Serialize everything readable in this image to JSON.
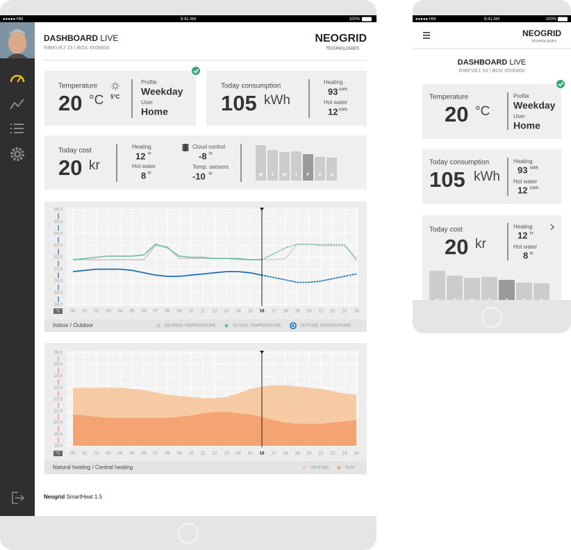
{
  "status_bar": {
    "carrier": "●●●●● HM",
    "time": "9:41 AM",
    "battery": "100%"
  },
  "header": {
    "title": "DASHBOARD",
    "title_suffix": "LIVE",
    "subtitle": "RIBEVEJ 33 | BOX #506800",
    "brand": "NEOGRID",
    "brand_tagline": "TECHNOLOGIES"
  },
  "temperature_card": {
    "label": "Temperature",
    "value": 20,
    "unit": "°C",
    "outdoor": "5°C",
    "profile_label": "Profile",
    "profile": "Weekday",
    "user_label": "User",
    "user": "Home"
  },
  "consumption_card": {
    "label": "Today consumption",
    "value": 105,
    "unit": "kWh",
    "heating_label": "Heating",
    "heating": 93,
    "heating_unit": "kWh",
    "hot_water_label": "Hot water",
    "hot_water": 12,
    "hot_water_unit": "kWh"
  },
  "cost_card": {
    "label": "Today cost",
    "value": 20,
    "unit": "kr",
    "heating_label": "Heating",
    "heating": 12,
    "heating_unit": "kr",
    "hot_water_label": "Hot water",
    "hot_water": 8,
    "hot_water_unit": "kr",
    "cloud_label": "Cloud control",
    "cloud": -8,
    "cloud_unit": "kr",
    "sensors_label": "Temp. sensors",
    "sensors": -10,
    "sensors_unit": "kr",
    "week": {
      "categories": [
        "M",
        "T",
        "W",
        "T",
        "F",
        "S",
        "S"
      ],
      "values": [
        51,
        44,
        41,
        42,
        38,
        34,
        33
      ],
      "colors": [
        "#cccccc",
        "#cccccc",
        "#cccccc",
        "#cccccc",
        "#9a9a9a",
        "#cccccc",
        "#cccccc"
      ]
    }
  },
  "chart_data": [
    {
      "type": "line",
      "label": "Indoor / Outdoor",
      "y_unit": "°C",
      "x": [
        0,
        1,
        2,
        3,
        4,
        5,
        6,
        7,
        8,
        9,
        10,
        11,
        12,
        13,
        14,
        15,
        16,
        17,
        18,
        19,
        20,
        21,
        22,
        23,
        24
      ],
      "xticks": [
        {
          "value": 0,
          "label": "00"
        },
        {
          "value": 1,
          "label": "01"
        },
        {
          "value": 2,
          "label": "02"
        },
        {
          "value": 3,
          "label": "03"
        },
        {
          "value": 4,
          "label": "04"
        },
        {
          "value": 5,
          "label": "05"
        },
        {
          "value": 6,
          "label": "06"
        },
        {
          "value": 7,
          "label": "07"
        },
        {
          "value": 8,
          "label": "08"
        },
        {
          "value": 9,
          "label": "09"
        },
        10,
        11,
        12,
        13,
        14,
        15,
        16,
        17,
        18,
        19,
        20,
        21,
        22,
        23,
        24
      ],
      "xlim": [
        0,
        24
      ],
      "ylim": [
        18,
        26
      ],
      "yticks": [
        {
          "value": 18,
          "label": "18.0"
        },
        {
          "value": 19,
          "label": "19.0"
        },
        {
          "value": 20,
          "label": "20.0"
        },
        {
          "value": 21,
          "label": "21.0"
        },
        {
          "value": 22,
          "label": "22.0"
        },
        {
          "value": 23,
          "label": "23.0"
        },
        {
          "value": 24,
          "label": "24.0"
        },
        {
          "value": 25,
          "label": "25.0"
        },
        {
          "value": 26,
          "label": "26.0"
        }
      ],
      "marker_x": 16,
      "grid": true,
      "series": [
        {
          "name": "DESIRED TEMPERATURE",
          "color": "#c8c8c8",
          "values": [
            21.8,
            21.8,
            21.8,
            21.8,
            21.8,
            21.8,
            21.8,
            23.0,
            22.9,
            21.9,
            21.9,
            21.9,
            21.9,
            21.9,
            21.8,
            21.8,
            21.8,
            21.8,
            21.9,
            23.1,
            23.1,
            23.1,
            23.1,
            23.1,
            21.7
          ]
        },
        {
          "name": "ACTUAL TEMPERATURE",
          "color": "#6fbf98",
          "values": [
            21.8,
            21.9,
            22.0,
            22.1,
            22.1,
            22.1,
            22.2,
            23.1,
            22.8,
            22.1,
            22.0,
            22.0,
            21.9,
            21.9,
            21.9,
            21.8,
            21.8,
            22.3,
            22.8,
            23.1,
            23.1,
            23.0,
            23.0,
            23.0,
            21.9
          ]
        },
        {
          "name": "OUTSIDE TEMPERATURE",
          "color": "#1f6fb5",
          "marker": "ring",
          "values": [
            20.8,
            20.9,
            21.0,
            21.0,
            21.0,
            20.9,
            20.7,
            20.5,
            20.4,
            20.4,
            20.5,
            20.6,
            20.7,
            20.8,
            20.8,
            20.7,
            20.5,
            20.3,
            20.1,
            19.9,
            19.9,
            20.0,
            20.2,
            20.4,
            20.6
          ]
        }
      ]
    },
    {
      "type": "area",
      "label": "Natural heating / Central heating",
      "y_unit": "°C",
      "x": [
        0,
        1,
        2,
        3,
        4,
        5,
        6,
        7,
        8,
        9,
        10,
        11,
        12,
        13,
        14,
        15,
        16,
        17,
        18,
        19,
        20,
        21,
        22,
        23,
        24
      ],
      "xticks": [
        {
          "value": 0,
          "label": "00"
        },
        {
          "value": 1,
          "label": "01"
        },
        {
          "value": 2,
          "label": "02"
        },
        {
          "value": 3,
          "label": "03"
        },
        {
          "value": 4,
          "label": "04"
        },
        {
          "value": 5,
          "label": "05"
        },
        {
          "value": 6,
          "label": "06"
        },
        {
          "value": 7,
          "label": "07"
        },
        {
          "value": 8,
          "label": "08"
        },
        {
          "value": 9,
          "label": "09"
        },
        10,
        11,
        12,
        13,
        14,
        15,
        16,
        17,
        18,
        19,
        20,
        21,
        22,
        23,
        24
      ],
      "xlim": [
        0,
        24
      ],
      "ylim": [
        18,
        26
      ],
      "yticks": [
        {
          "value": 18,
          "label": "18.0"
        },
        {
          "value": 19,
          "label": "19.0"
        },
        {
          "value": 20,
          "label": "20.0"
        },
        {
          "value": 21,
          "label": "21.0"
        },
        {
          "value": 22,
          "label": "22.0"
        },
        {
          "value": 23,
          "label": "23.0"
        },
        {
          "value": 24,
          "label": "24.0"
        },
        {
          "value": 25,
          "label": "25.0"
        },
        {
          "value": 26,
          "label": "26.0"
        }
      ],
      "marker_x": 16,
      "grid": true,
      "series": [
        {
          "name": "HEATING",
          "color": "#f6cba4",
          "values": [
            23.0,
            23.0,
            23.0,
            23.0,
            23.0,
            22.9,
            22.8,
            22.6,
            22.4,
            22.3,
            22.2,
            22.1,
            22.1,
            22.2,
            22.5,
            22.9,
            23.1,
            23.2,
            23.2,
            23.1,
            23.0,
            22.9,
            22.7,
            22.5,
            22.4
          ]
        },
        {
          "name": "SUN",
          "color": "#f4a373",
          "values": [
            20.7,
            20.6,
            20.5,
            20.4,
            20.4,
            20.4,
            20.4,
            20.4,
            20.4,
            20.5,
            20.6,
            20.8,
            20.9,
            20.9,
            20.8,
            20.7,
            20.5,
            20.2,
            20.0,
            19.9,
            19.9,
            19.9,
            20.0,
            20.1,
            20.2
          ]
        }
      ]
    }
  ],
  "footer": {
    "brand": "Neogrid",
    "product": "SmartHeat 1.5"
  }
}
